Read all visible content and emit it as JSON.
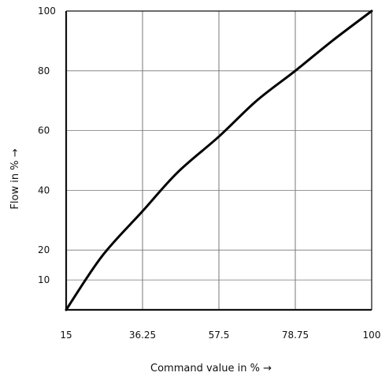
{
  "chart_data": {
    "type": "line",
    "title": "",
    "xlabel": "Command value in % →",
    "ylabel": "Flow in % →",
    "xlim": [
      15,
      100
    ],
    "ylim": [
      0,
      100
    ],
    "x_ticks": [
      15,
      36.25,
      57.5,
      78.75,
      100
    ],
    "x_tick_labels": [
      "15",
      "36.25",
      "57.5",
      "78.75",
      "100"
    ],
    "y_ticks": [
      10,
      20,
      40,
      60,
      80,
      100
    ],
    "y_tick_labels": [
      "10",
      "20",
      "40",
      "60",
      "80",
      "100"
    ],
    "grid": true,
    "series": [
      {
        "x": [
          15,
          25,
          36.25,
          46,
          57.5,
          68,
          78.75,
          89,
          100
        ],
        "y": [
          0,
          18,
          33,
          46,
          58,
          70,
          80,
          90,
          100
        ]
      }
    ]
  },
  "colors": {
    "frame": "#111111",
    "grid": "#777777",
    "line": "#000000",
    "text": "#111111"
  }
}
